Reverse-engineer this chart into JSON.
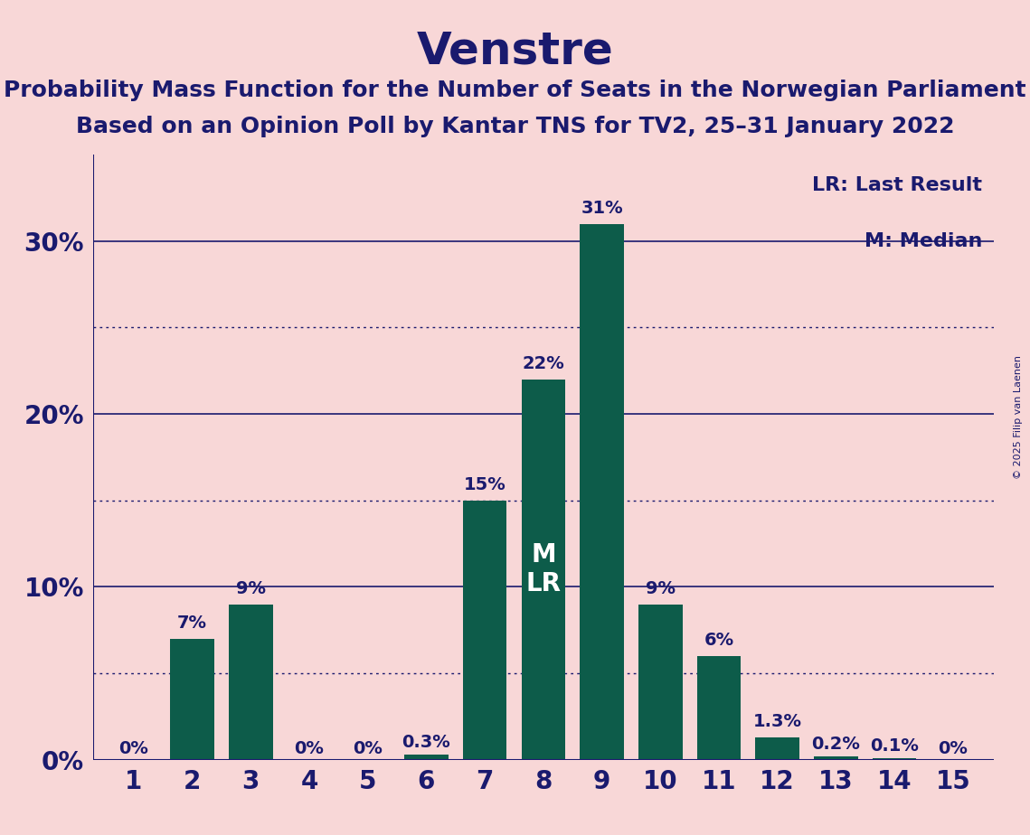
{
  "title": "Venstre",
  "subtitle1": "Probability Mass Function for the Number of Seats in the Norwegian Parliament",
  "subtitle2": "Based on an Opinion Poll by Kantar TNS for TV2, 25–31 January 2022",
  "copyright": "© 2025 Filip van Laenen",
  "categories": [
    1,
    2,
    3,
    4,
    5,
    6,
    7,
    8,
    9,
    10,
    11,
    12,
    13,
    14,
    15
  ],
  "values": [
    0.0,
    7.0,
    9.0,
    0.0,
    0.0,
    0.3,
    15.0,
    22.0,
    31.0,
    9.0,
    6.0,
    1.3,
    0.2,
    0.1,
    0.0
  ],
  "labels": [
    "0%",
    "7%",
    "9%",
    "0%",
    "0%",
    "0.3%",
    "15%",
    "22%",
    "31%",
    "9%",
    "6%",
    "1.3%",
    "0.2%",
    "0.1%",
    "0%"
  ],
  "bar_color": "#0d5c4a",
  "background_color": "#f8d7d7",
  "text_color": "#1a1a6e",
  "title_fontsize": 36,
  "subtitle_fontsize": 18,
  "label_fontsize": 14,
  "tick_fontsize": 20,
  "ytick_labels": [
    "0%",
    "10%",
    "20%",
    "30%"
  ],
  "ytick_values": [
    0,
    10,
    20,
    30
  ],
  "ylim": [
    0,
    35
  ],
  "median_seat": 8,
  "lr_seat": 8,
  "legend_lr": "LR: Last Result",
  "legend_m": "M: Median",
  "solid_gridlines": [
    10,
    20,
    30
  ],
  "dotted_gridlines": [
    5,
    15,
    25
  ]
}
